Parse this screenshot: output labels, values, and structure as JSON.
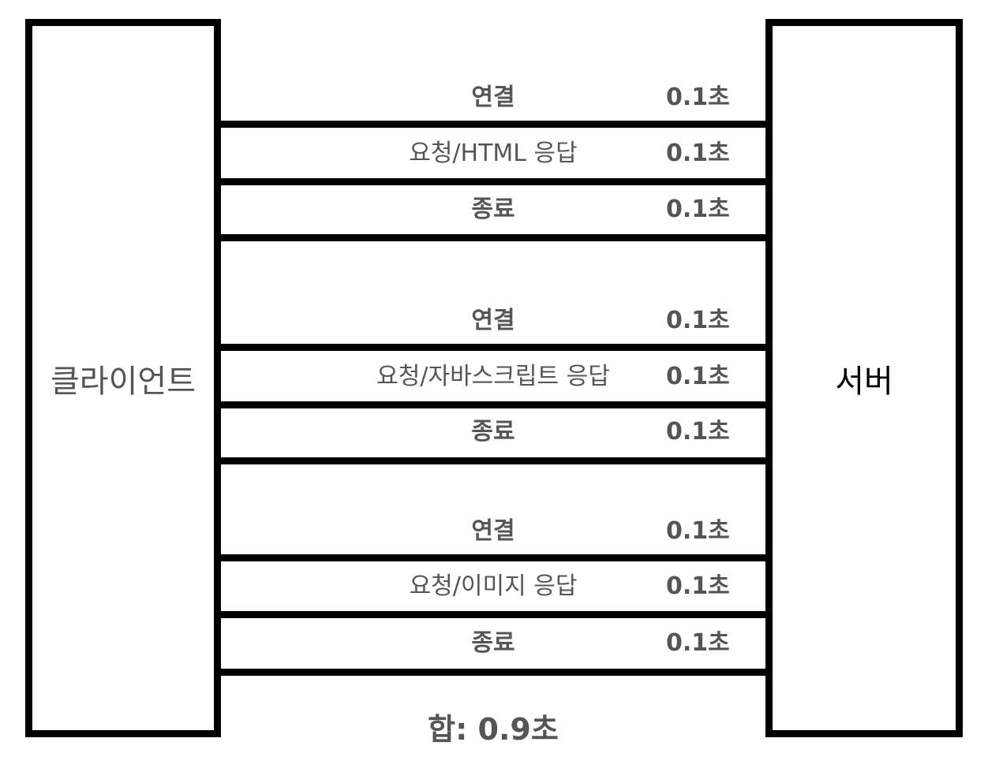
{
  "client_label": "클라이언트",
  "server_label": "서버",
  "groups": [
    {
      "steps": [
        {
          "label": "연결",
          "time": "0.1초"
        },
        {
          "label": "요청/HTML 응답",
          "time": "0.1초"
        },
        {
          "label": "종료",
          "time": "0.1초"
        }
      ]
    },
    {
      "steps": [
        {
          "label": "연결",
          "time": "0.1초"
        },
        {
          "label": "요청/자바스크립트 응답",
          "time": "0.1초"
        },
        {
          "label": "종료",
          "time": "0.1초"
        }
      ]
    },
    {
      "steps": [
        {
          "label": "연결",
          "time": "0.1초"
        },
        {
          "label": "요청/이미지 응답",
          "time": "0.1초"
        },
        {
          "label": "종료",
          "time": "0.1초"
        }
      ]
    }
  ],
  "total_label": "합: 0.9초"
}
